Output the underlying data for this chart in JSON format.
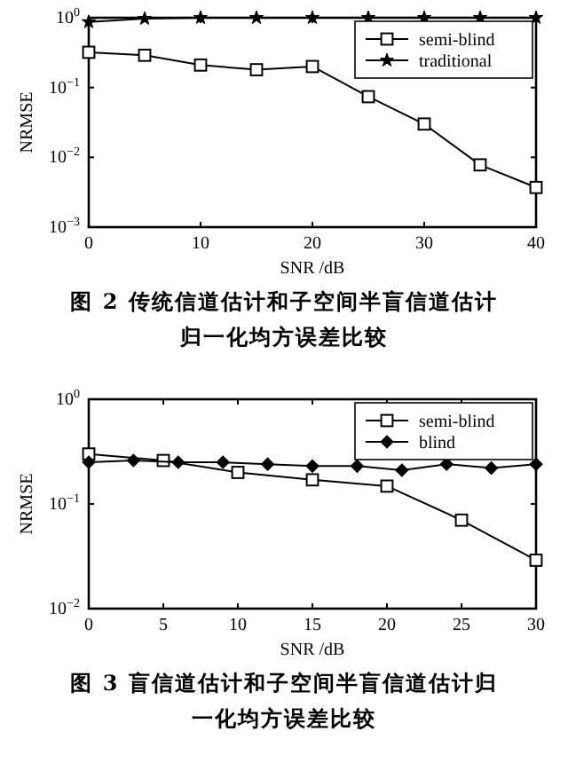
{
  "chart_data": [
    {
      "type": "line",
      "xlabel": "SNR /dB",
      "ylabel": "NRMSE",
      "log": "y",
      "legend": "top right",
      "x": [
        0,
        5,
        10,
        15,
        20,
        25,
        30,
        35,
        40
      ],
      "xlim": [
        0,
        40
      ],
      "xticks": [
        0,
        10,
        20,
        30,
        40
      ],
      "ylim": [
        0.001,
        1
      ],
      "yticks": [
        {
          "value": 0.001,
          "label": "10$^{−3}$"
        },
        {
          "value": 0.01,
          "label": "10$^{−2}$"
        },
        {
          "value": 0.1,
          "label": "10$^{−1}$"
        },
        {
          "value": 1,
          "label": "10$^{0}$"
        }
      ],
      "series": [
        {
          "name": "semi-blind",
          "color": "#000000",
          "marker": "square",
          "values": [
            0.32,
            0.29,
            0.21,
            0.18,
            0.2,
            0.074,
            0.03,
            0.0078,
            0.0037
          ]
        },
        {
          "name": "traditional",
          "color": "#000000",
          "marker": "star",
          "values": [
            0.87,
            0.97,
            1,
            1,
            1,
            1,
            1,
            1,
            1
          ]
        }
      ],
      "annotations": [
        "图 2  传统信道估计和子空间半盲信道估计归一化均方误差比较"
      ]
    },
    {
      "type": "line",
      "xlabel": "SNR /dB",
      "ylabel": "NRMSE",
      "log": "y",
      "legend": "top right",
      "x": [
        0,
        5,
        10,
        15,
        20,
        25,
        30
      ],
      "xlim": [
        0,
        30
      ],
      "xticks": [
        0,
        5,
        10,
        15,
        20,
        25,
        30
      ],
      "ylim": [
        0.01,
        1
      ],
      "yticks": [
        {
          "value": 0.01,
          "label": "10$^{−2}$"
        },
        {
          "value": 0.1,
          "label": "10$^{−1}$"
        },
        {
          "value": 1,
          "label": "10$^{0}$"
        }
      ],
      "series": [
        {
          "name": "semi-blind",
          "color": "#000000",
          "marker": "square",
          "values": [
            0.3,
            0.26,
            0.2,
            0.17,
            0.148,
            0.07,
            0.029
          ]
        },
        {
          "name": "blind",
          "color": "#000000",
          "marker": "diamond",
          "x": [
            0,
            3,
            6,
            9,
            12,
            15,
            18,
            21,
            24,
            27,
            30
          ],
          "values": [
            0.25,
            0.26,
            0.25,
            0.25,
            0.24,
            0.23,
            0.23,
            0.21,
            0.24,
            0.22,
            0.24
          ]
        }
      ],
      "annotations": [
        "图 3  盲信道估计和子空间半盲信道估计归一化均方误差比较"
      ]
    }
  ]
}
